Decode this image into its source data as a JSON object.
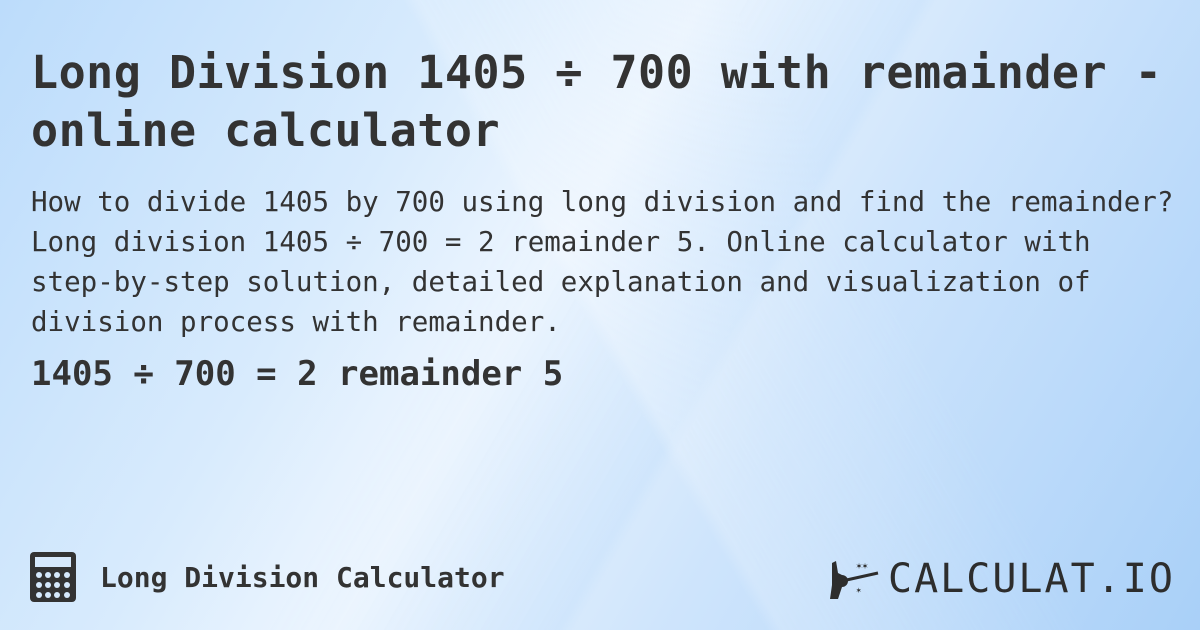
{
  "title": "Long Division 1405 ÷ 700 with remainder - online calculator",
  "description": "How to divide 1405 by 700 using long division and find the remainder? Long division 1405 ÷ 700 = 2 remainder 5. Online calculator with step-by-step solution, detailed explanation and visualization of division process with remainder.",
  "result": "1405 ÷ 700 = 2 remainder 5",
  "footer": {
    "calculator_name": "Long Division Calculator",
    "icon": "calculator-icon"
  },
  "logo": {
    "text": "CALCULAT.IO",
    "icon": "magic-hand-icon"
  }
}
